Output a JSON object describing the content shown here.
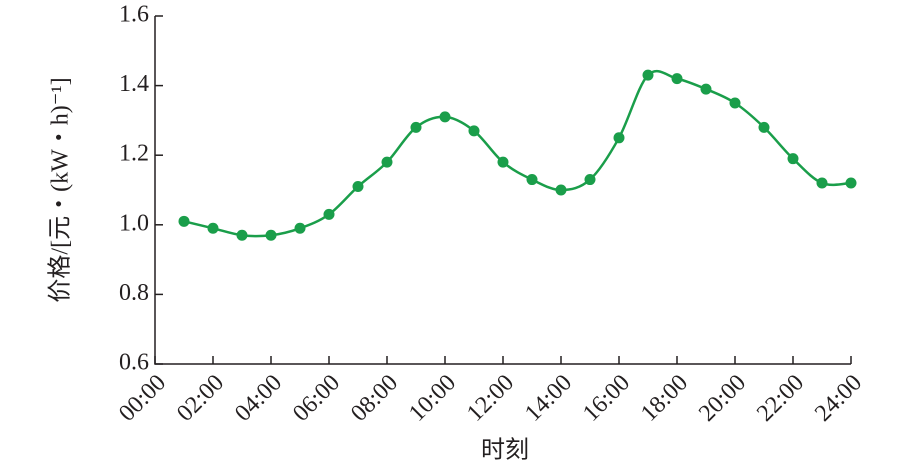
{
  "chart_data": {
    "type": "line",
    "xlabel": "时刻",
    "ylabel": "价格/[元・(kW・h)⁻¹]",
    "x": [
      1,
      2,
      3,
      4,
      5,
      6,
      7,
      8,
      9,
      10,
      11,
      12,
      13,
      14,
      15,
      16,
      17,
      18,
      19,
      20,
      21,
      22,
      23,
      24
    ],
    "series": [
      {
        "color": "#1a9e4a",
        "values": [
          1.01,
          0.99,
          0.97,
          0.97,
          0.99,
          1.03,
          1.11,
          1.18,
          1.28,
          1.31,
          1.27,
          1.18,
          1.13,
          1.1,
          1.13,
          1.25,
          1.43,
          1.42,
          1.39,
          1.35,
          1.28,
          1.19,
          1.12,
          1.12
        ]
      }
    ],
    "xlim": [
      0,
      24
    ],
    "xticks": [
      {
        "value": 0,
        "label": "00:00"
      },
      {
        "value": 2,
        "label": "02:00"
      },
      {
        "value": 4,
        "label": "04:00"
      },
      {
        "value": 6,
        "label": "06:00"
      },
      {
        "value": 8,
        "label": "08:00"
      },
      {
        "value": 10,
        "label": "10:00"
      },
      {
        "value": 12,
        "label": "12:00"
      },
      {
        "value": 14,
        "label": "14:00"
      },
      {
        "value": 16,
        "label": "16:00"
      },
      {
        "value": 18,
        "label": "18:00"
      },
      {
        "value": 20,
        "label": "20:00"
      },
      {
        "value": 22,
        "label": "22:00"
      },
      {
        "value": 24,
        "label": "24:00"
      }
    ],
    "ylim": [
      0.6,
      1.6
    ],
    "yticks": [
      0.6,
      0.8,
      {
        "value": 1,
        "label": "1.0"
      },
      1.2,
      1.4,
      1.6
    ],
    "grid": false
  }
}
